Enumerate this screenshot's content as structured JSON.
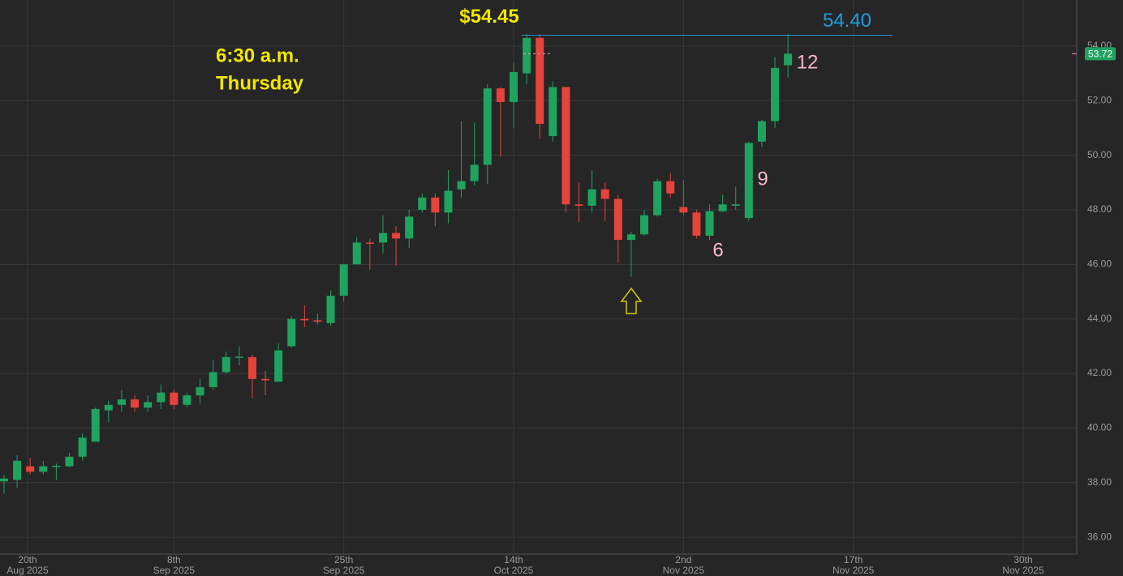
{
  "chart_data": {
    "type": "candlestick",
    "up_color": "#1fa35f",
    "down_color": "#e5433b",
    "open": [
      38.05,
      38.1,
      38.6,
      38.4,
      38.6,
      38.6,
      38.95,
      39.5,
      40.65,
      40.85,
      41.05,
      40.75,
      40.95,
      41.3,
      40.85,
      41.2,
      41.5,
      42.05,
      42.6,
      42.6,
      41.8,
      41.7,
      43.0,
      44.0,
      43.95,
      43.85,
      44.85,
      46.0,
      46.8,
      46.8,
      47.15,
      46.95,
      48.0,
      48.45,
      47.9,
      48.75,
      49.05,
      49.65,
      52.45,
      51.95,
      53.0,
      54.3,
      50.7,
      52.5,
      48.2,
      48.15,
      48.75,
      48.4,
      46.9,
      47.1,
      47.8,
      49.05,
      48.1,
      47.9,
      47.05,
      47.95,
      48.15,
      47.7,
      50.5,
      51.25,
      53.3
    ],
    "high": [
      38.3,
      39.0,
      38.9,
      38.8,
      38.7,
      39.1,
      39.8,
      40.75,
      41.0,
      41.4,
      41.2,
      41.2,
      41.6,
      41.4,
      41.3,
      41.8,
      42.5,
      42.8,
      43.0,
      42.7,
      42.1,
      43.1,
      44.1,
      44.5,
      44.2,
      45.05,
      46.0,
      47.0,
      46.95,
      47.8,
      47.4,
      48.0,
      48.6,
      48.6,
      49.45,
      51.25,
      51.2,
      52.6,
      52.5,
      53.4,
      54.45,
      54.45,
      52.7,
      52.5,
      49.0,
      49.45,
      49.0,
      48.55,
      47.2,
      48.0,
      49.15,
      49.35,
      49.1,
      48.0,
      48.2,
      48.55,
      48.85,
      50.5,
      51.3,
      53.6,
      54.45
    ],
    "low": [
      37.6,
      37.8,
      38.3,
      38.3,
      38.1,
      38.55,
      38.8,
      39.5,
      40.2,
      40.6,
      40.6,
      40.6,
      40.7,
      40.7,
      40.75,
      40.9,
      41.4,
      42.0,
      42.3,
      41.1,
      41.2,
      41.7,
      42.95,
      43.7,
      43.8,
      43.75,
      44.65,
      46.0,
      45.8,
      46.4,
      45.95,
      46.6,
      47.9,
      47.4,
      47.5,
      48.45,
      48.9,
      48.95,
      49.95,
      51.0,
      52.6,
      50.6,
      50.5,
      47.9,
      47.55,
      47.9,
      47.6,
      46.05,
      45.55,
      47.05,
      47.75,
      48.45,
      47.8,
      46.95,
      46.9,
      47.9,
      48.0,
      47.6,
      50.3,
      51.0,
      52.85
    ],
    "close": [
      38.15,
      38.8,
      38.4,
      38.6,
      38.62,
      38.95,
      39.65,
      40.7,
      40.85,
      41.05,
      40.75,
      40.95,
      41.3,
      40.85,
      41.2,
      41.5,
      42.05,
      42.6,
      42.62,
      41.8,
      41.75,
      42.85,
      44.0,
      43.95,
      43.9,
      44.85,
      46.0,
      46.8,
      46.78,
      47.15,
      46.95,
      47.75,
      48.45,
      47.9,
      48.7,
      49.05,
      49.65,
      52.45,
      51.95,
      53.05,
      54.3,
      51.15,
      52.5,
      48.2,
      48.15,
      48.75,
      48.4,
      46.9,
      47.1,
      47.8,
      49.05,
      48.6,
      47.9,
      47.05,
      47.95,
      48.2,
      48.2,
      50.45,
      51.25,
      53.2,
      53.72
    ],
    "xlim": [
      -0.31,
      82.1
    ],
    "xticks": [
      {
        "value": 1.8,
        "label": [
          "20th",
          "Aug 2025"
        ]
      },
      {
        "value": 13,
        "label": [
          "8th",
          "Sep 2025"
        ]
      },
      {
        "value": 26,
        "label": [
          "25th",
          "Sep 2025"
        ]
      },
      {
        "value": 39,
        "label": [
          "14th",
          "Oct 2025"
        ]
      },
      {
        "value": 52,
        "label": [
          "2nd",
          "Nov 2025"
        ]
      },
      {
        "value": 65,
        "label": [
          "17th",
          "Nov 2025"
        ]
      },
      {
        "value": 78,
        "label": [
          "30th",
          "Nov 2025"
        ]
      }
    ],
    "ylim": [
      35.38,
      55.69
    ],
    "yticks": [
      {
        "value": 36,
        "label": "36.00"
      },
      {
        "value": 38,
        "label": "38.00"
      },
      {
        "value": 40,
        "label": "40.00"
      },
      {
        "value": 42,
        "label": "42.00"
      },
      {
        "value": 44,
        "label": "44.00"
      },
      {
        "value": 46,
        "label": "46.00"
      },
      {
        "value": 48,
        "label": "48.00"
      },
      {
        "value": 50,
        "label": "50.00"
      },
      {
        "value": 52,
        "label": "52.00"
      },
      {
        "value": 54,
        "label": "54.00"
      }
    ],
    "grid": true,
    "last_price": 53.72,
    "high_label": {
      "value": 54.45,
      "label": "$54.45"
    },
    "level": {
      "value": 54.4,
      "label": "54.40"
    },
    "time_note": [
      "6:30 a.m.",
      "Thursday"
    ],
    "count_labels": [
      "6",
      "9",
      "12"
    ]
  }
}
